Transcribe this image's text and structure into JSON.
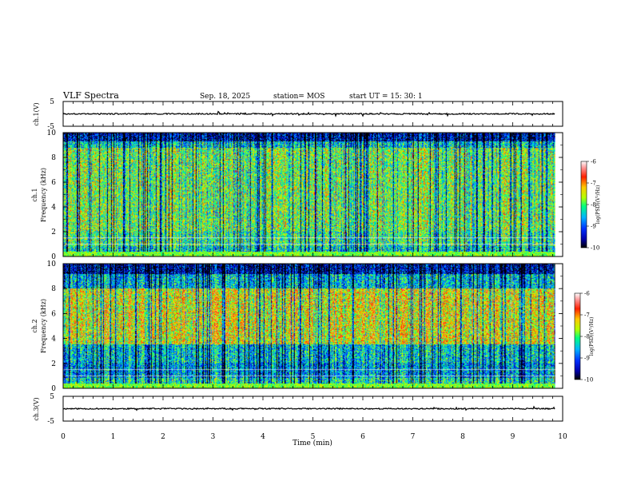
{
  "header": {
    "title": "VLF Spectra",
    "date": "Sep. 18, 2025",
    "station": "station= MOS",
    "start_ut": "start  UT  =   15: 30: 1"
  },
  "chart_data": {
    "type": "heatmap",
    "x": {
      "label": "Time  (min)",
      "range": [
        0,
        10
      ],
      "ticks": [
        "0",
        "1",
        "2",
        "3",
        "4",
        "5",
        "6",
        "7",
        "8",
        "9",
        "10"
      ],
      "data_end": 9.85
    },
    "panels": [
      {
        "id": "ch1-waveform",
        "type": "line",
        "ylabel": "ch.1(V)",
        "yticks": [
          "5",
          "-5"
        ],
        "ylim": [
          -5,
          5
        ],
        "baseline": 0
      },
      {
        "id": "ch1-spectrogram",
        "type": "heatmap",
        "ylabel_line1": "ch.1",
        "ylabel_line2": "Frequency  (kHz)",
        "yticks": [
          "0",
          "2",
          "4",
          "6",
          "8",
          "10"
        ],
        "ylim": [
          0,
          10
        ],
        "seed": 7
      },
      {
        "id": "ch2-spectrogram",
        "type": "heatmap",
        "ylabel_line1": "ch.2",
        "ylabel_line2": "Frequency  (kHz)",
        "yticks": [
          "0",
          "2",
          "4",
          "6",
          "8",
          "10"
        ],
        "ylim": [
          0,
          10
        ],
        "seed": 21
      },
      {
        "id": "ch3-waveform",
        "type": "line",
        "ylabel": "ch.3(V)",
        "yticks": [
          "5",
          "-5"
        ],
        "ylim": [
          -5,
          5
        ],
        "baseline": 0
      }
    ],
    "colorbar": {
      "label": "log(PSD)(V²/Hz)",
      "range": [
        -10,
        -6
      ],
      "ticks": [
        "-6",
        "-7",
        "-8",
        "-9",
        "-10"
      ],
      "colors": [
        "#000000",
        "#0000aa",
        "#0030ff",
        "#00b4ff",
        "#00ff80",
        "#b4ff00",
        "#ffc800",
        "#ff2000",
        "#ff9090",
        "#ffffff"
      ]
    }
  }
}
